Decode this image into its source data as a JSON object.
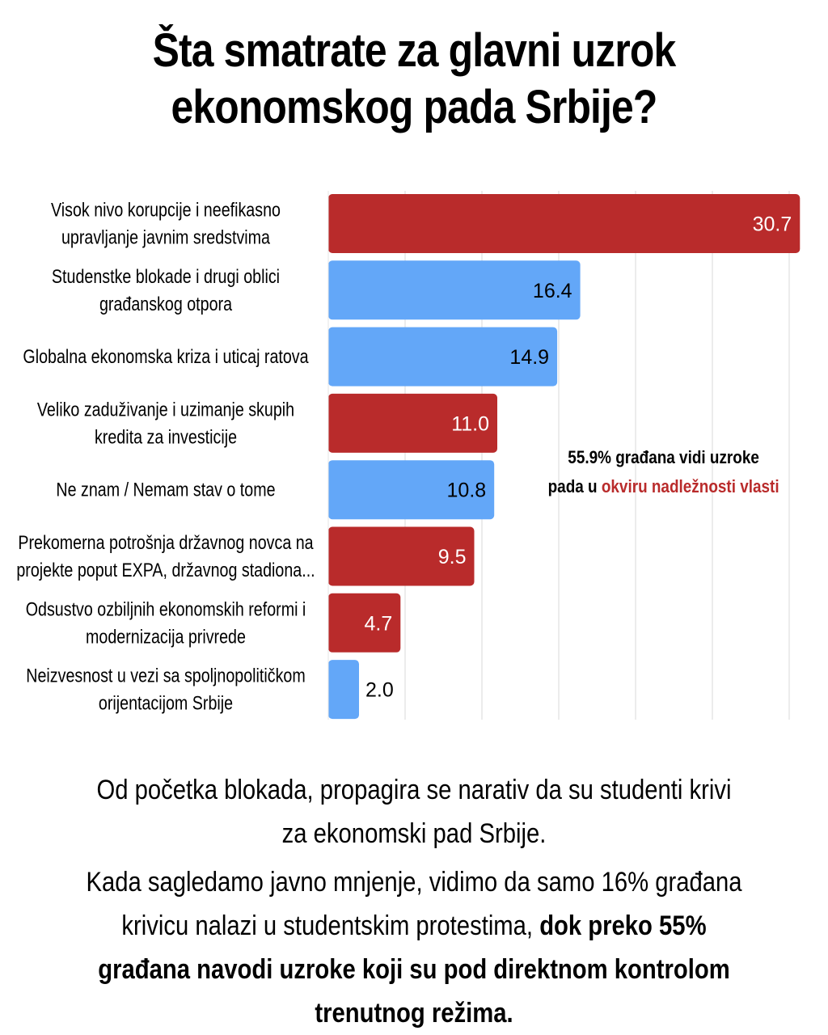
{
  "title": {
    "line1": "Šta smatrate za glavni uzrok",
    "line2": "ekonomskog pada Srbije?"
  },
  "colors": {
    "red": "#b92b2b",
    "blue": "#63a7f8",
    "grid": "#d9d9d9",
    "text": "#000000"
  },
  "chart_data": {
    "type": "bar",
    "orientation": "horizontal",
    "categories": [
      [
        "Visok nivo korupcije i neefikasno",
        "upravljanje javnim sredstvima"
      ],
      [
        "Studenstke blokade i drugi oblici",
        "građanskog otpora"
      ],
      [
        "Globalna ekonomska kriza i uticaj ratova"
      ],
      [
        "Veliko zaduživanje i uzimanje skupih",
        "kredita za investicije"
      ],
      [
        "Ne znam / Nemam stav o tome"
      ],
      [
        "Prekomerna potrošnja državnog novca na",
        "projekte poput EXPA, državnog stadiona..."
      ],
      [
        "Odsustvo ozbiljnih ekonomskih reformi i",
        "modernizacija privrede"
      ],
      [
        "Neizvesnost u vezi sa spoljnopolitičkom",
        "orijentacijom Srbije"
      ]
    ],
    "values": [
      30.7,
      16.4,
      14.9,
      11.0,
      10.8,
      9.5,
      4.7,
      2.0
    ],
    "labels": [
      "30.7",
      "16.4",
      "14.9",
      "11.0",
      "10.8",
      "9.5",
      "4.7",
      "2.0"
    ],
    "bar_colors": [
      "red",
      "blue",
      "blue",
      "red",
      "blue",
      "red",
      "red",
      "blue"
    ],
    "xlim": [
      0,
      32
    ],
    "x_gridlines": [
      0,
      5,
      10,
      15,
      20,
      25,
      30
    ],
    "grid": true
  },
  "annotation": {
    "line1": "55.9% građana vidi uzroke",
    "line2_prefix": "pada u ",
    "line2_highlight": "okviru nadležnosti vlasti"
  },
  "caption": {
    "p1": "Od početka blokada, propagira se narativ da su studenti krivi za ekonomski pad Srbije.",
    "p2_normal": "Kada sagledamo javno mnjenje, vidimo da samo 16% građana krivicu nalazi u studentskim protestima, ",
    "p2_bold": "dok preko 55% građana navodi uzroke koji su pod direktnom kontrolom trenutnog režima."
  }
}
